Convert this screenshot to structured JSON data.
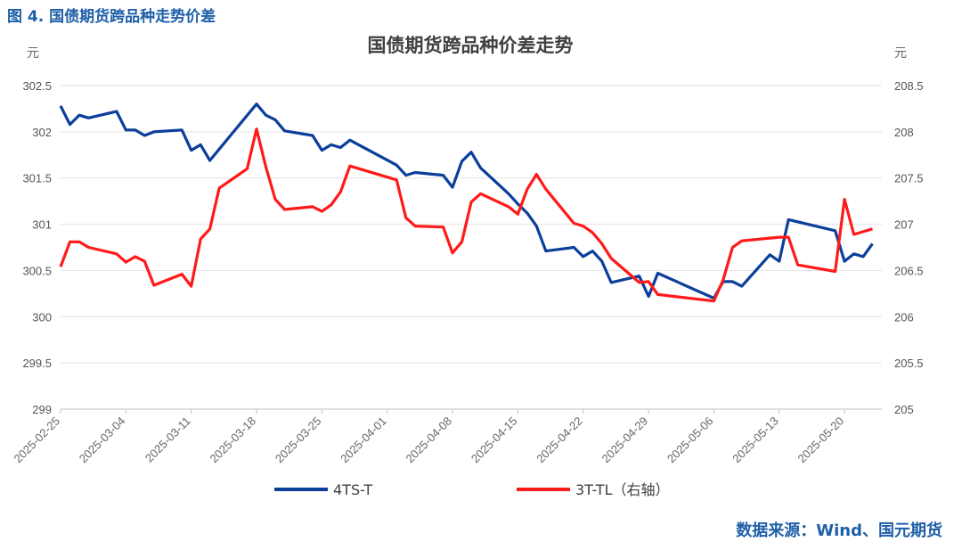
{
  "figure_title": "图 4. 国债期货跨品种走势价差",
  "source": "数据来源：Wind、国元期货",
  "chart_data": {
    "type": "line",
    "title": "国债期货跨品种价差走势",
    "y_left_unit": "元",
    "y_right_unit": "元",
    "y_left_lim": [
      299,
      302.5
    ],
    "y_right_lim": [
      205,
      208.5
    ],
    "y_left_ticks": [
      "299",
      "299.5",
      "300",
      "300.5",
      "301",
      "301.5",
      "302",
      "302.5"
    ],
    "y_right_ticks": [
      "205",
      "205.5",
      "206",
      "206.5",
      "207",
      "207.5",
      "208",
      "208.5"
    ],
    "x_ticks": [
      "2025-02-25",
      "2025-03-04",
      "2025-03-11",
      "2025-03-18",
      "2025-03-25",
      "2025-04-01",
      "2025-04-08",
      "2025-04-15",
      "2025-04-22",
      "2025-04-29",
      "2025-05-06",
      "2025-05-13",
      "2025-05-20"
    ],
    "grid": "horizontal",
    "legend_position": "bottom",
    "series": [
      {
        "name": "4TS-T",
        "axis": "left",
        "color": "#0b3f9a",
        "points": [
          [
            "2025-02-25",
            302.28
          ],
          [
            "2025-02-26",
            302.08
          ],
          [
            "2025-02-27",
            302.18
          ],
          [
            "2025-02-28",
            302.15
          ],
          [
            "2025-03-03",
            302.22
          ],
          [
            "2025-03-04",
            302.02
          ],
          [
            "2025-03-05",
            302.02
          ],
          [
            "2025-03-06",
            301.96
          ],
          [
            "2025-03-07",
            302.0
          ],
          [
            "2025-03-10",
            302.02
          ],
          [
            "2025-03-11",
            301.8
          ],
          [
            "2025-03-12",
            301.86
          ],
          [
            "2025-03-13",
            301.69
          ],
          [
            "2025-03-18",
            302.3
          ],
          [
            "2025-03-19",
            302.18
          ],
          [
            "2025-03-20",
            302.13
          ],
          [
            "2025-03-21",
            302.01
          ],
          [
            "2025-03-24",
            301.96
          ],
          [
            "2025-03-25",
            301.8
          ],
          [
            "2025-03-26",
            301.86
          ],
          [
            "2025-03-27",
            301.83
          ],
          [
            "2025-03-28",
            301.91
          ],
          [
            "2025-04-02",
            301.64
          ],
          [
            "2025-04-03",
            301.53
          ],
          [
            "2025-04-04",
            301.56
          ],
          [
            "2025-04-07",
            301.53
          ],
          [
            "2025-04-08",
            301.4
          ],
          [
            "2025-04-09",
            301.68
          ],
          [
            "2025-04-10",
            301.78
          ],
          [
            "2025-04-11",
            301.61
          ],
          [
            "2025-04-14",
            301.33
          ],
          [
            "2025-04-15",
            301.22
          ],
          [
            "2025-04-16",
            301.12
          ],
          [
            "2025-04-17",
            300.98
          ],
          [
            "2025-04-18",
            300.71
          ],
          [
            "2025-04-21",
            300.75
          ],
          [
            "2025-04-22",
            300.65
          ],
          [
            "2025-04-23",
            300.71
          ],
          [
            "2025-04-24",
            300.6
          ],
          [
            "2025-04-25",
            300.37
          ],
          [
            "2025-04-28",
            300.44
          ],
          [
            "2025-04-29",
            300.22
          ],
          [
            "2025-04-30",
            300.47
          ],
          [
            "2025-05-06",
            300.2
          ],
          [
            "2025-05-07",
            300.38
          ],
          [
            "2025-05-08",
            300.38
          ],
          [
            "2025-05-09",
            300.33
          ],
          [
            "2025-05-12",
            300.67
          ],
          [
            "2025-05-13",
            300.6
          ],
          [
            "2025-05-14",
            301.05
          ],
          [
            "2025-05-19",
            300.93
          ],
          [
            "2025-05-20",
            300.6
          ],
          [
            "2025-05-21",
            300.68
          ],
          [
            "2025-05-22",
            300.65
          ],
          [
            "2025-05-23",
            300.79
          ]
        ]
      },
      {
        "name": "3T-TL（右轴）",
        "axis": "right",
        "color": "#ff1a1a",
        "points": [
          [
            "2025-02-25",
            206.54
          ],
          [
            "2025-02-26",
            206.81
          ],
          [
            "2025-02-27",
            206.81
          ],
          [
            "2025-02-28",
            206.75
          ],
          [
            "2025-03-03",
            206.68
          ],
          [
            "2025-03-04",
            206.59
          ],
          [
            "2025-03-05",
            206.65
          ],
          [
            "2025-03-06",
            206.6
          ],
          [
            "2025-03-07",
            206.34
          ],
          [
            "2025-03-10",
            206.46
          ],
          [
            "2025-03-11",
            206.33
          ],
          [
            "2025-03-12",
            206.84
          ],
          [
            "2025-03-13",
            206.95
          ],
          [
            "2025-03-14",
            207.39
          ],
          [
            "2025-03-17",
            207.6
          ],
          [
            "2025-03-18",
            208.03
          ],
          [
            "2025-03-19",
            207.62
          ],
          [
            "2025-03-20",
            207.27
          ],
          [
            "2025-03-21",
            207.16
          ],
          [
            "2025-03-24",
            207.19
          ],
          [
            "2025-03-25",
            207.14
          ],
          [
            "2025-03-26",
            207.21
          ],
          [
            "2025-03-27",
            207.35
          ],
          [
            "2025-03-28",
            207.63
          ],
          [
            "2025-04-02",
            207.48
          ],
          [
            "2025-04-03",
            207.07
          ],
          [
            "2025-04-04",
            206.98
          ],
          [
            "2025-04-07",
            206.97
          ],
          [
            "2025-04-08",
            206.69
          ],
          [
            "2025-04-09",
            206.81
          ],
          [
            "2025-04-10",
            207.24
          ],
          [
            "2025-04-11",
            207.33
          ],
          [
            "2025-04-14",
            207.19
          ],
          [
            "2025-04-15",
            207.11
          ],
          [
            "2025-04-16",
            207.38
          ],
          [
            "2025-04-17",
            207.54
          ],
          [
            "2025-04-18",
            207.38
          ],
          [
            "2025-04-21",
            207.01
          ],
          [
            "2025-04-22",
            206.98
          ],
          [
            "2025-04-23",
            206.91
          ],
          [
            "2025-04-24",
            206.79
          ],
          [
            "2025-04-25",
            206.63
          ],
          [
            "2025-04-28",
            206.37
          ],
          [
            "2025-04-29",
            206.38
          ],
          [
            "2025-04-30",
            206.24
          ],
          [
            "2025-05-06",
            206.17
          ],
          [
            "2025-05-07",
            206.4
          ],
          [
            "2025-05-08",
            206.75
          ],
          [
            "2025-05-09",
            206.82
          ],
          [
            "2025-05-12",
            206.85
          ],
          [
            "2025-05-13",
            206.86
          ],
          [
            "2025-05-14",
            206.86
          ],
          [
            "2025-05-15",
            206.56
          ],
          [
            "2025-05-19",
            206.49
          ],
          [
            "2025-05-20",
            207.27
          ],
          [
            "2025-05-21",
            206.89
          ],
          [
            "2025-05-22",
            206.92
          ],
          [
            "2025-05-23",
            206.95
          ]
        ]
      }
    ]
  }
}
